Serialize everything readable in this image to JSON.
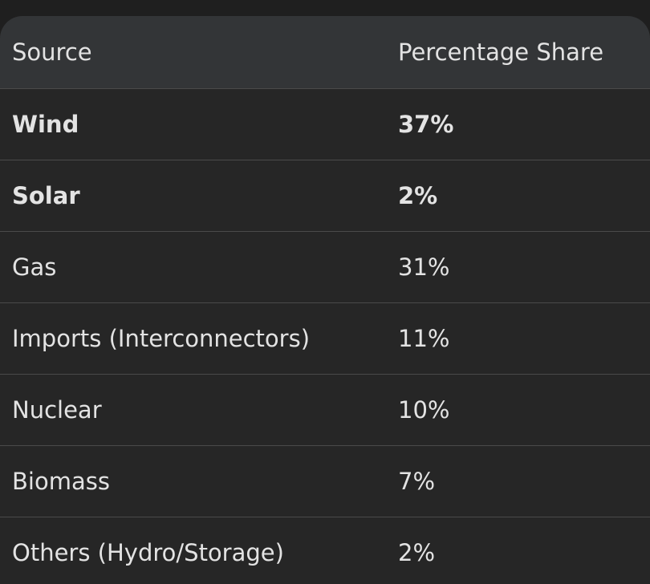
{
  "table": {
    "header": [
      "Source",
      "Percentage Share"
    ],
    "rows": [
      [
        "Wind",
        "37%"
      ],
      [
        "Solar",
        "2%"
      ],
      [
        "Gas",
        "31%"
      ],
      [
        "Imports (Interconnectors)",
        "11%"
      ],
      [
        "Nuclear",
        "10%"
      ],
      [
        "Biomass",
        "7%"
      ],
      [
        "Others (Hydro/Storage)",
        "2%"
      ]
    ]
  }
}
